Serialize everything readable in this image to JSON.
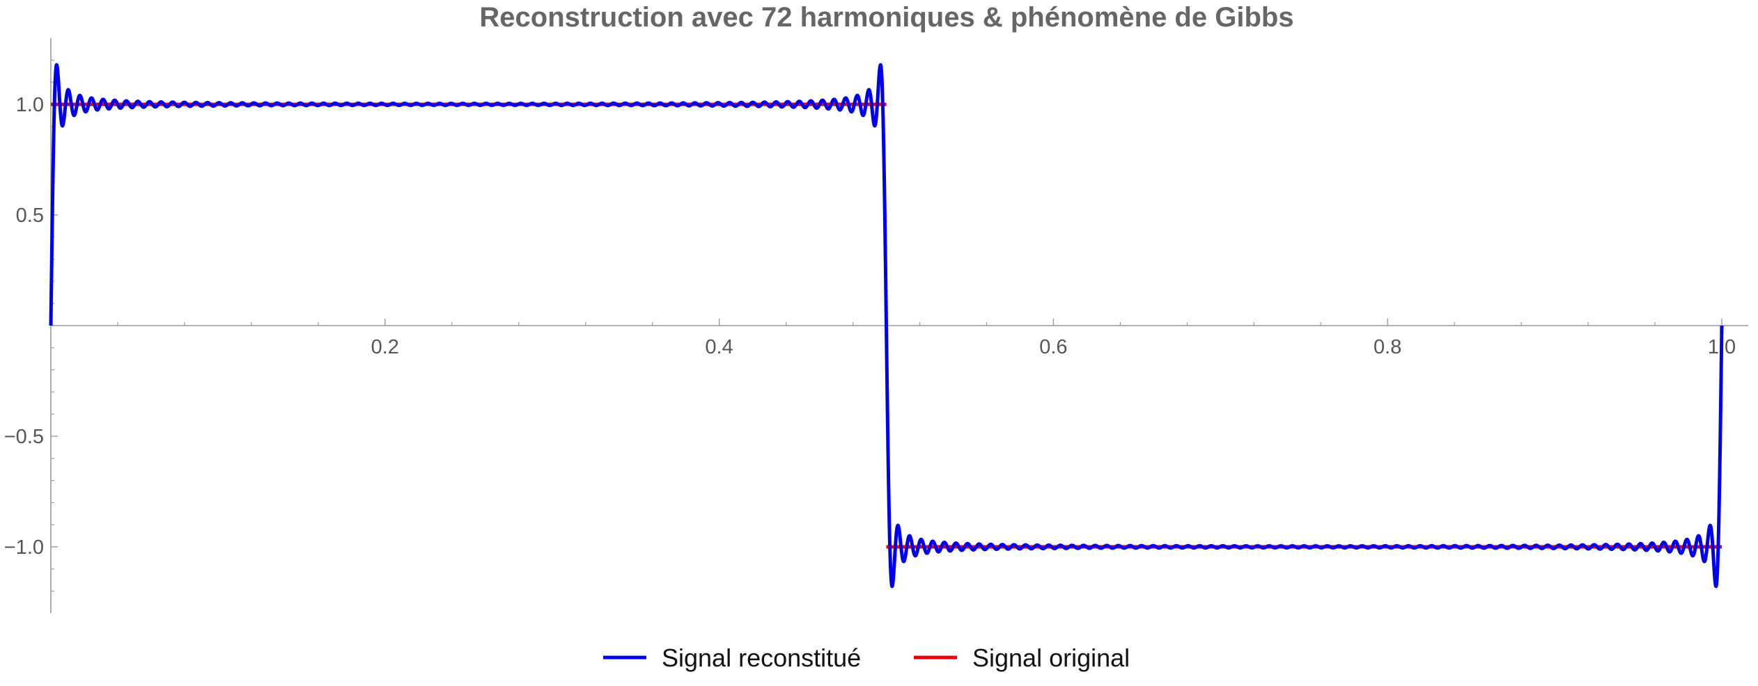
{
  "chart_data": {
    "type": "line",
    "title": "Reconstruction avec 72 harmoniques & phénomène de Gibbs",
    "xlabel": "",
    "ylabel": "",
    "xlim": [
      0,
      1.0
    ],
    "ylim": [
      -1.3,
      1.3
    ],
    "grid": false,
    "legend_position": "bottom",
    "harmonics": 72,
    "x_ticks": [
      {
        "value": 0.2,
        "label": "0.2"
      },
      {
        "value": 0.4,
        "label": "0.4"
      },
      {
        "value": 0.6,
        "label": "0.6"
      },
      {
        "value": 0.8,
        "label": "0.8"
      },
      {
        "value": 1.0,
        "label": "1.0"
      }
    ],
    "y_ticks": [
      {
        "value": 1.0,
        "label": "1.0"
      },
      {
        "value": 0.5,
        "label": "0.5"
      },
      {
        "value": -0.5,
        "label": "−0.5"
      },
      {
        "value": -1.0,
        "label": "−1.0"
      }
    ],
    "series": [
      {
        "name": "Signal reconstitué",
        "color": "#0000ee",
        "kind": "fourier-square-wave-reconstruction"
      },
      {
        "name": "Signal original",
        "color": "#ee0000",
        "kind": "square-wave",
        "segments": [
          {
            "x": [
              0,
              0.5
            ],
            "y": 1.0
          },
          {
            "x": [
              0.5,
              1.0
            ],
            "y": -1.0
          }
        ]
      }
    ]
  }
}
